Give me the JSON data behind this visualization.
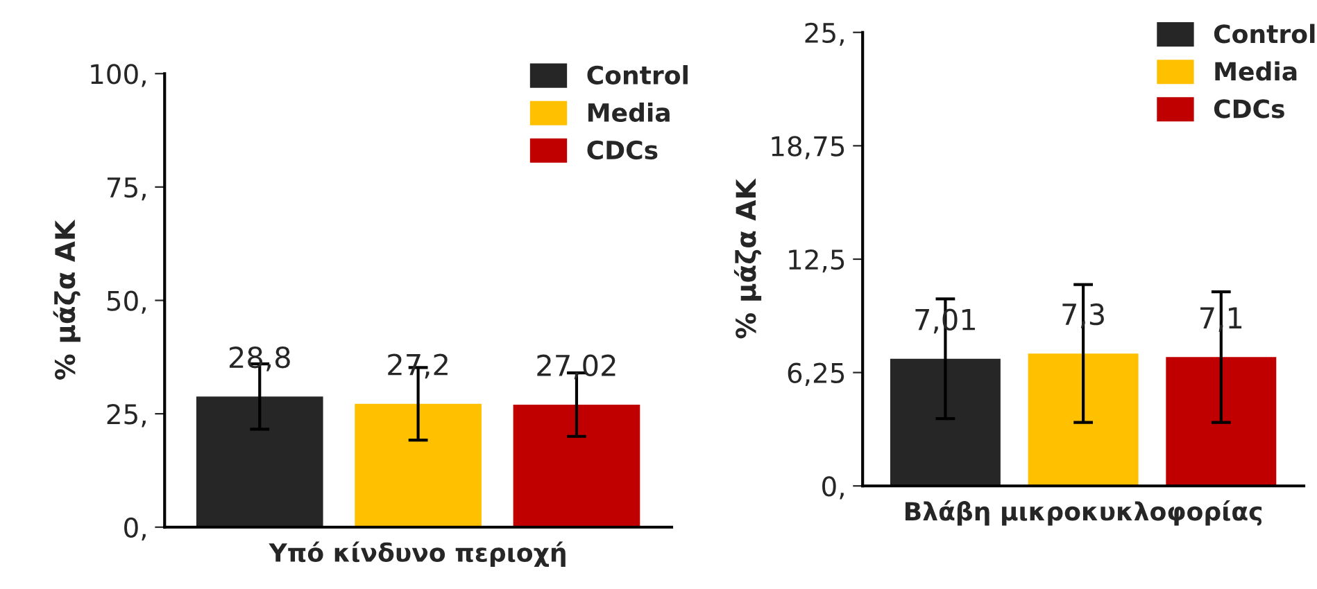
{
  "chart_data": [
    {
      "type": "bar",
      "categories": [
        null,
        null,
        null
      ],
      "xlabel": "Υπό κίνδυνο περιοχή",
      "ylabel": "% μάζα ΑΚ",
      "ylim": [
        0,
        100
      ],
      "yticks": [
        {
          "value": 0,
          "label": "0,"
        },
        {
          "value": 25,
          "label": "25,"
        },
        {
          "value": 50,
          "label": "50,"
        },
        {
          "value": 75,
          "label": "75,"
        },
        {
          "value": 100,
          "label": "100,"
        }
      ],
      "legend": "top right",
      "grid": false,
      "series": [
        {
          "name": "Control",
          "color": "#262626",
          "values": [
            28.8,
            null,
            null
          ],
          "errors": [
            7.2,
            null,
            null
          ],
          "value_labels": [
            "28,8",
            null,
            null
          ]
        },
        {
          "name": "Media",
          "color": "#ffc000",
          "values": [
            null,
            27.2,
            null
          ],
          "errors": [
            null,
            8,
            null
          ],
          "value_labels": [
            null,
            "27,2",
            null
          ]
        },
        {
          "name": "CDCs",
          "color": "#c00000",
          "values": [
            null,
            null,
            27.02
          ],
          "errors": [
            null,
            null,
            7
          ],
          "value_labels": [
            null,
            null,
            "27,02"
          ]
        }
      ]
    },
    {
      "type": "bar",
      "categories": [
        null,
        null,
        null
      ],
      "xlabel": "Βλάβη μικροκυκλοφορίας",
      "ylabel": "% μάζα ΑΚ",
      "ylim": [
        0,
        25
      ],
      "yticks": [
        {
          "value": 0,
          "label": "0,"
        },
        {
          "value": 6.25,
          "label": "6,25"
        },
        {
          "value": 12.5,
          "label": "12,5"
        },
        {
          "value": 18.75,
          "label": "18,75"
        },
        {
          "value": 25,
          "label": "25,"
        }
      ],
      "legend": "top right",
      "grid": false,
      "series": [
        {
          "name": "Control",
          "color": "#262626",
          "values": [
            7.01,
            null,
            null
          ],
          "errors": [
            3.3,
            null,
            null
          ],
          "value_labels": [
            "7,01",
            null,
            null
          ]
        },
        {
          "name": "Media",
          "color": "#ffc000",
          "values": [
            null,
            7.3,
            null
          ],
          "errors": [
            null,
            3.8,
            null
          ],
          "value_labels": [
            null,
            "7,3",
            null
          ]
        },
        {
          "name": "CDCs",
          "color": "#c00000",
          "values": [
            null,
            null,
            7.1
          ],
          "errors": [
            null,
            null,
            3.6
          ],
          "value_labels": [
            null,
            null,
            "7,1"
          ]
        }
      ]
    }
  ]
}
